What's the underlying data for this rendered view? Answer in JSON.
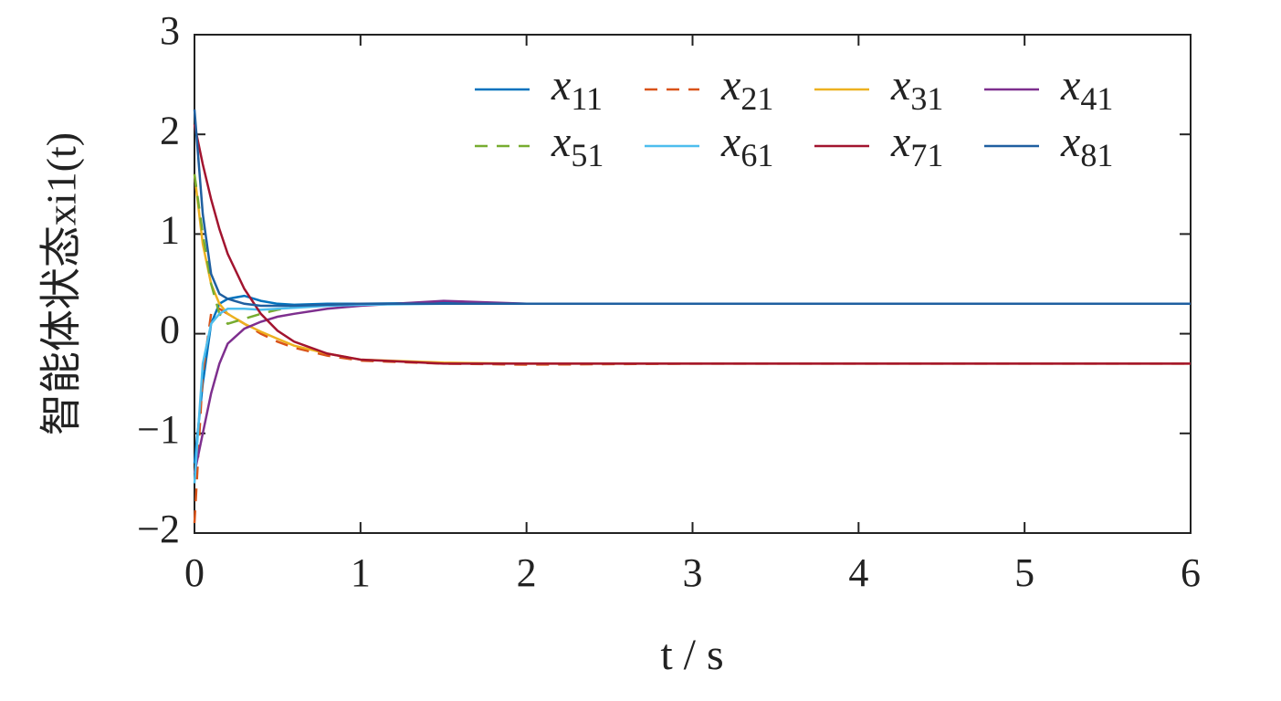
{
  "chart_data": {
    "type": "line",
    "xlabel": "t / s",
    "ylabel": "智能体状态xi1(t)",
    "x": [
      0,
      0.05,
      0.1,
      0.15,
      0.2,
      0.3,
      0.4,
      0.5,
      0.6,
      0.8,
      1,
      1.5,
      2,
      3,
      4,
      5,
      6
    ],
    "series": [
      {
        "name": "x11",
        "color": "#0072bd",
        "dashed": false,
        "values": [
          -1.3,
          -0.5,
          0.1,
          0.3,
          0.35,
          0.38,
          0.33,
          0.3,
          0.29,
          0.3,
          0.3,
          0.31,
          0.3,
          0.3,
          0.3,
          0.3,
          0.3
        ]
      },
      {
        "name": "x21",
        "color": "#d95319",
        "dashed": true,
        "values": [
          -1.9,
          -0.4,
          0.2,
          0.25,
          0.2,
          0.1,
          0.0,
          -0.08,
          -0.14,
          -0.22,
          -0.27,
          -0.3,
          -0.31,
          -0.3,
          -0.3,
          -0.3,
          -0.3
        ]
      },
      {
        "name": "x31",
        "color": "#edb120",
        "dashed": false,
        "values": [
          1.6,
          0.9,
          0.5,
          0.3,
          0.2,
          0.1,
          0.02,
          -0.05,
          -0.12,
          -0.2,
          -0.26,
          -0.29,
          -0.3,
          -0.3,
          -0.3,
          -0.3,
          -0.3
        ]
      },
      {
        "name": "x41",
        "color": "#7e2f8e",
        "dashed": false,
        "values": [
          -1.4,
          -1.0,
          -0.6,
          -0.3,
          -0.1,
          0.05,
          0.12,
          0.17,
          0.2,
          0.25,
          0.28,
          0.33,
          0.3,
          0.3,
          0.3,
          0.3,
          0.3
        ]
      },
      {
        "name": "x51",
        "color": "#77ac30",
        "dashed": true,
        "values": [
          1.6,
          1.0,
          0.5,
          0.2,
          0.1,
          0.15,
          0.2,
          0.24,
          0.27,
          0.29,
          0.3,
          0.3,
          0.3,
          0.3,
          0.3,
          0.3,
          0.3
        ]
      },
      {
        "name": "x61",
        "color": "#4dbeee",
        "dashed": false,
        "values": [
          -1.5,
          -0.3,
          0.1,
          0.2,
          0.25,
          0.25,
          0.24,
          0.25,
          0.26,
          0.28,
          0.29,
          0.3,
          0.3,
          0.3,
          0.3,
          0.3,
          0.3
        ]
      },
      {
        "name": "x71",
        "color": "#a2142f",
        "dashed": false,
        "values": [
          2.1,
          1.7,
          1.35,
          1.05,
          0.8,
          0.45,
          0.2,
          0.03,
          -0.08,
          -0.2,
          -0.26,
          -0.3,
          -0.3,
          -0.3,
          -0.3,
          -0.3,
          -0.3
        ]
      },
      {
        "name": "x81",
        "color": "#1f5fa0",
        "dashed": false,
        "values": [
          2.25,
          1.2,
          0.6,
          0.4,
          0.35,
          0.3,
          0.28,
          0.28,
          0.28,
          0.29,
          0.3,
          0.3,
          0.3,
          0.3,
          0.3,
          0.3,
          0.3
        ]
      }
    ],
    "xlim": [
      0,
      6
    ],
    "xticks": [
      0,
      1,
      2,
      3,
      4,
      5,
      6
    ],
    "ylim": [
      -2,
      3
    ],
    "yticks": [
      {
        "value": -2,
        "label": "−2"
      },
      {
        "value": -1,
        "label": "−1"
      },
      0,
      1,
      2,
      3
    ],
    "legend": "upper right",
    "legend_columns": 4
  }
}
